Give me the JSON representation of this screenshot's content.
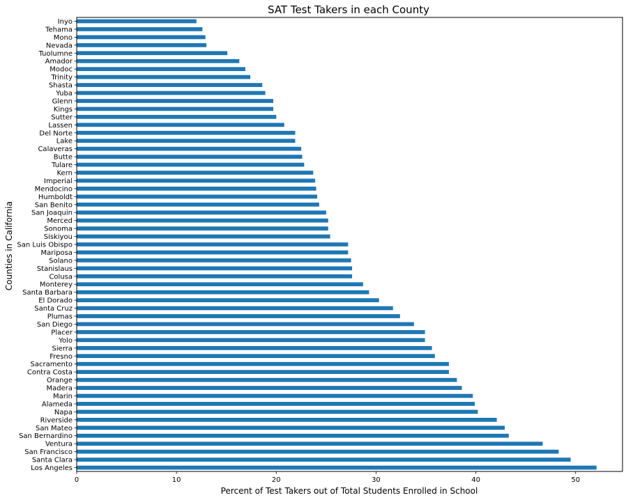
{
  "chart_data": {
    "type": "bar",
    "orientation": "horizontal",
    "title": "SAT Test Takers in each County",
    "xlabel": "Percent of Test Takers out of Total Students Enrolled in School",
    "ylabel": "Counties in California",
    "xlim": [
      0,
      54.7
    ],
    "xticks": [
      0,
      10,
      20,
      30,
      40,
      50
    ],
    "bar_color": "#1f77b4",
    "grid": false,
    "categories": [
      "Inyo",
      "Tehama",
      "Mono",
      "Nevada",
      "Tuolumne",
      "Amador",
      "Modoc",
      "Trinity",
      "Shasta",
      "Yuba",
      "Glenn",
      "Kings",
      "Sutter",
      "Lassen",
      "Del Norte",
      "Lake",
      "Calaveras",
      "Butte",
      "Tulare",
      "Kern",
      "Imperial",
      "Mendocino",
      "Humboldt",
      "San Benito",
      "San Joaquin",
      "Merced",
      "Sonoma",
      "Siskiyou",
      "San Luis Obispo",
      "Mariposa",
      "Solano",
      "Stanislaus",
      "Colusa",
      "Monterey",
      "Santa Barbara",
      "El Dorado",
      "Santa Cruz",
      "Plumas",
      "San Diego",
      "Placer",
      "Yolo",
      "Sierra",
      "Fresno",
      "Sacramento",
      "Contra Costa",
      "Orange",
      "Madera",
      "Marin",
      "Alameda",
      "Napa",
      "Riverside",
      "San Mateo",
      "San Bernardino",
      "Ventura",
      "San Francisco",
      "Santa Clara",
      "Los Angeles"
    ],
    "values": [
      12.0,
      12.6,
      12.9,
      13.0,
      15.1,
      16.3,
      16.9,
      17.4,
      18.6,
      18.9,
      19.7,
      19.7,
      20.0,
      20.8,
      21.9,
      21.9,
      22.5,
      22.6,
      22.8,
      23.7,
      23.9,
      24.0,
      24.1,
      24.3,
      25.0,
      25.2,
      25.2,
      25.4,
      27.2,
      27.2,
      27.5,
      27.6,
      27.6,
      28.7,
      29.3,
      30.3,
      31.7,
      32.4,
      33.8,
      34.9,
      34.9,
      35.6,
      35.9,
      37.3,
      37.3,
      38.1,
      38.6,
      39.7,
      39.9,
      40.2,
      42.1,
      42.9,
      43.3,
      46.7,
      48.3,
      49.5,
      52.1
    ]
  }
}
